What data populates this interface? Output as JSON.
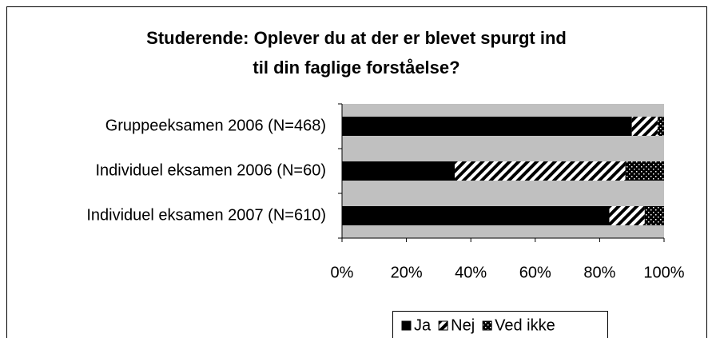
{
  "chart_data": {
    "type": "stacked_barh",
    "title": [
      "Studerende: Oplever du at der er blevet spurgt ind",
      "til din faglige forståelse?"
    ],
    "categories": [
      "Gruppeeksamen 2006 (N=468)",
      "Individuel eksamen 2006 (N=60)",
      "Individuel eksamen 2007 (N=610)"
    ],
    "series": [
      {
        "name": "Ja",
        "color": "#000000",
        "pattern": "solid",
        "values": [
          90,
          35,
          83
        ]
      },
      {
        "name": "Nej",
        "color": "#000000",
        "pattern": "hatch",
        "values": [
          8,
          53,
          11
        ]
      },
      {
        "name": "Ved ikke",
        "color": "#000000",
        "pattern": "dots",
        "values": [
          2,
          12,
          6
        ]
      }
    ],
    "xlim": [
      0,
      100
    ],
    "xticks": [
      {
        "value": 0,
        "label": "0%"
      },
      {
        "value": 20,
        "label": "20%"
      },
      {
        "value": 40,
        "label": "40%"
      },
      {
        "value": 60,
        "label": "60%"
      },
      {
        "value": 80,
        "label": "80%"
      },
      {
        "value": 100,
        "label": "100%"
      }
    ],
    "plot_background": "#c0c0c0",
    "legend": "bottom"
  }
}
